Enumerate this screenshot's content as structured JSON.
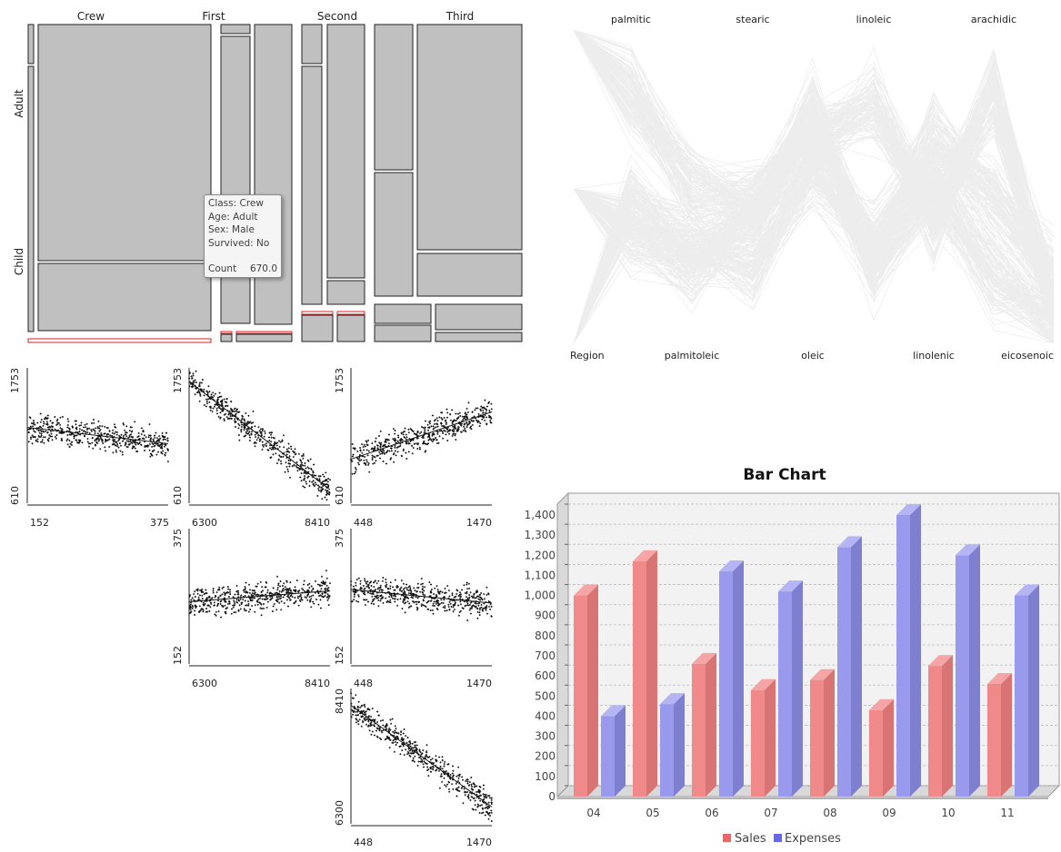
{
  "chart_data": [
    {
      "type": "mosaic",
      "columns": [
        "Crew",
        "First",
        "Second",
        "Third"
      ],
      "rows": [
        "Adult",
        "Child"
      ],
      "tooltip": {
        "class_label": "Class: Crew",
        "age_label": "Age: Adult",
        "sex_label": "Sex: Male",
        "survived_label": "Survived: No",
        "count_label": "Count",
        "count_value": "670.0"
      }
    },
    {
      "type": "parallel-coordinates",
      "axes_top": [
        "palmitic",
        "stearic",
        "linoleic",
        "arachidic"
      ],
      "axes_bottom": [
        "Region",
        "palmitoleic",
        "oleic",
        "linolenic",
        "eicosenoic"
      ]
    },
    {
      "type": "scatter-matrix",
      "panels": [
        {
          "x_min": "152",
          "x_max": "375",
          "y_min": "610",
          "y_max": "1753"
        },
        {
          "x_min": "6300",
          "x_max": "8410",
          "y_min": "610",
          "y_max": "1753"
        },
        {
          "x_min": "448",
          "x_max": "1470",
          "y_min": "610",
          "y_max": "1753"
        },
        {
          "x_min": "6300",
          "x_max": "8410",
          "y_min": "152",
          "y_max": "375"
        },
        {
          "x_min": "448",
          "x_max": "1470",
          "y_min": "152",
          "y_max": "375"
        },
        {
          "x_min": "448",
          "x_max": "1470",
          "y_min": "6300",
          "y_max": "8410"
        }
      ]
    },
    {
      "type": "bar",
      "title": "Bar Chart",
      "categories": [
        "04",
        "05",
        "06",
        "07",
        "08",
        "09",
        "10",
        "11"
      ],
      "series": [
        {
          "name": "Sales",
          "color": "#f08a8a",
          "values": [
            1000,
            1170,
            660,
            530,
            580,
            430,
            650,
            560
          ]
        },
        {
          "name": "Expenses",
          "color": "#9999ee",
          "values": [
            400,
            460,
            1120,
            1020,
            1240,
            1400,
            1200,
            1000
          ]
        }
      ],
      "ylim": [
        0,
        1400
      ],
      "yticks": [
        "0",
        "100",
        "200",
        "300",
        "400",
        "500",
        "600",
        "700",
        "800",
        "900",
        "1,000",
        "1,100",
        "1,200",
        "1,300",
        "1,400"
      ],
      "legend_position": "bottom",
      "grid": true
    }
  ]
}
